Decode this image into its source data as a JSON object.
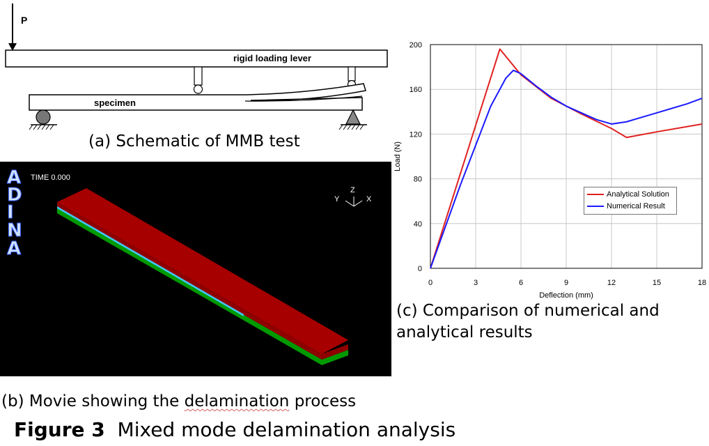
{
  "schematic": {
    "load_label": "P",
    "lever_label": "rigid loading lever",
    "specimen_label": "specimen",
    "caption": "(a) Schematic of MMB test"
  },
  "movie": {
    "time_label": "TIME 0.000",
    "brand_letters": [
      "A",
      "D",
      "I",
      "N",
      "A"
    ],
    "axis_labels": {
      "z": "Z",
      "y": "Y",
      "x": "X"
    },
    "caption_prefix": "(b) Movie showing the ",
    "caption_word": "delamination",
    "caption_suffix": " process",
    "colors": {
      "background": "#000000",
      "top_layer": "#a00000",
      "bottom_layer": "#00a000",
      "interface": "#40c8ff"
    }
  },
  "chart_caption_line1": "(c) Comparison of numerical and",
  "chart_caption_line2": "analytical results",
  "figure_title": {
    "number": "Figure 3",
    "text": "Mixed mode delamination analysis"
  },
  "chart_data": {
    "type": "line",
    "xlabel": "Deflection (mm)",
    "ylabel": "Load (N)",
    "xlim": [
      0,
      18
    ],
    "ylim": [
      0,
      200
    ],
    "xticks": [
      0,
      3,
      6,
      9,
      12,
      15,
      18
    ],
    "yticks": [
      0,
      40,
      80,
      120,
      160,
      200
    ],
    "grid": true,
    "legend_position": "center-right",
    "series": [
      {
        "name": "Analytical Solution",
        "color": "#e02020",
        "x": [
          0,
          4.6,
          6,
          8,
          10,
          12,
          13,
          15,
          18
        ],
        "y": [
          0,
          196,
          173,
          152,
          138,
          125,
          117,
          122,
          129
        ]
      },
      {
        "name": "Numerical Result",
        "color": "#1a1aff",
        "x": [
          0,
          2,
          4,
          5,
          5.5,
          6,
          7,
          8,
          9,
          10,
          11,
          12,
          13,
          14,
          15,
          16,
          17,
          18
        ],
        "y": [
          0,
          75,
          145,
          170,
          177,
          174,
          163,
          153,
          145,
          139,
          133,
          129,
          131,
          135,
          139,
          143,
          147,
          152
        ]
      }
    ]
  }
}
